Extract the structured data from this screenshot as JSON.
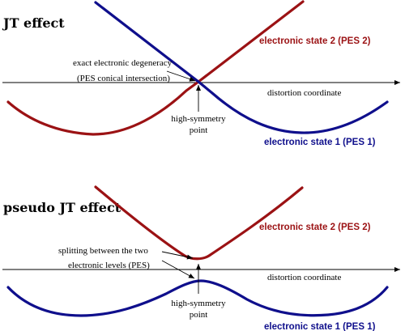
{
  "colors": {
    "state2": "#9b1214",
    "state1": "#0f0f8c"
  },
  "jt_panel": {
    "title": "JT effect",
    "state2_label": "electronic state 2 (PES 2)",
    "state1_label": "electronic state 1 (PES 1)",
    "axis_label": "distortion coordinate",
    "degeneracy_line1": "exact electronic degeneracy",
    "degeneracy_line2": "(PES conical intersection)",
    "point_line1": "high-symmetry",
    "point_line2": "point"
  },
  "pjt_panel": {
    "title": "pseudo JT effect",
    "state2_label": "electronic state 2 (PES 2)",
    "state1_label": "electronic state 1 (PES 1)",
    "axis_label": "distortion coordinate",
    "splitting_line1": "splitting between the two",
    "splitting_line2": "electronic levels (PES)",
    "point_line1": "high-symmetry",
    "point_line2": "point"
  }
}
